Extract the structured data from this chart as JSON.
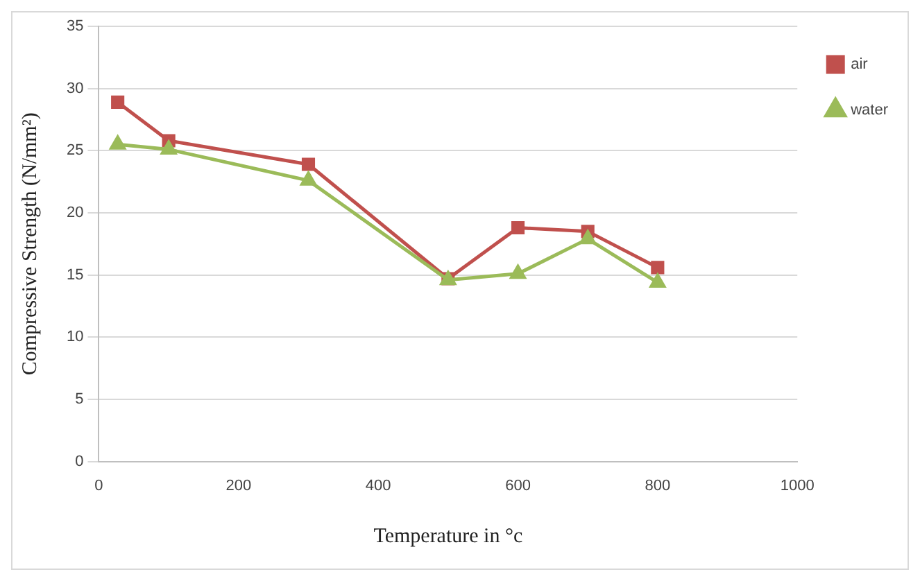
{
  "chart_data": {
    "type": "line",
    "xlabel": "Temperature in °c",
    "ylabel": "Compressive Strength (N/mm²)",
    "x": [
      27,
      100,
      300,
      500,
      600,
      700,
      800
    ],
    "series": [
      {
        "name": "air",
        "color": "#c0504d",
        "values": [
          28.9,
          25.8,
          23.9,
          14.7,
          18.8,
          18.5,
          15.6
        ],
        "marker": "square"
      },
      {
        "name": "water",
        "color": "#9bbb59",
        "values": [
          25.5,
          25.1,
          22.6,
          14.6,
          15.1,
          17.9,
          14.4
        ],
        "marker": "triangle"
      }
    ],
    "xlim": [
      0,
      1000
    ],
    "xticks": [
      0,
      200,
      400,
      600,
      800,
      1000
    ],
    "ylim": [
      0,
      35
    ],
    "yticks": [
      0,
      5,
      10,
      15,
      20,
      25,
      30,
      35
    ],
    "grid": "y",
    "legend": "top right"
  }
}
